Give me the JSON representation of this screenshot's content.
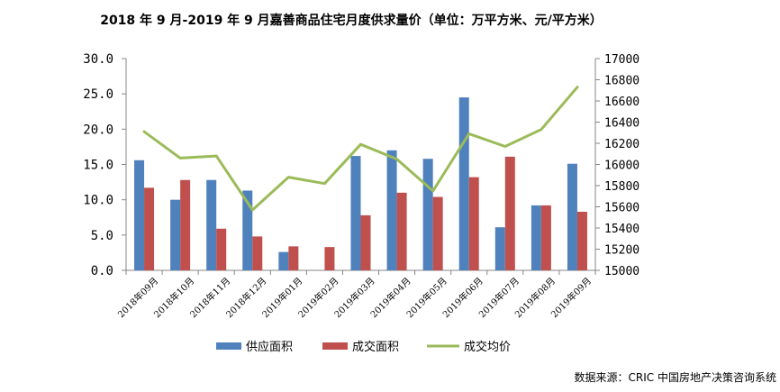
{
  "title": "2018 年 9 月-2019 年 9 月嘉善商品住宅月度供求量价（单位：万平方米、元/平方米）",
  "source": "数据来源：CRIC 中国房地产决策咨询系统",
  "colors": {
    "supply": "#4F81BD",
    "deal_area": "#C0504D",
    "deal_price": "#9BBB59",
    "axis": "#868686",
    "text": "#000000"
  },
  "chart_data": {
    "type": "bar",
    "categories": [
      "2018年09月",
      "2018年10月",
      "2018年11月",
      "2018年12月",
      "2019年01月",
      "2019年02月",
      "2019年03月",
      "2019年04月",
      "2019年05月",
      "2019年06月",
      "2019年07月",
      "2019年08月",
      "2019年09月"
    ],
    "series": [
      {
        "name": "供应面积",
        "type": "bar",
        "axis": "left",
        "values": [
          15.6,
          10.0,
          12.8,
          11.3,
          2.6,
          0,
          16.2,
          17.0,
          15.8,
          24.5,
          6.1,
          9.2,
          15.1
        ]
      },
      {
        "name": "成交面积",
        "type": "bar",
        "axis": "left",
        "values": [
          11.7,
          12.8,
          5.9,
          4.8,
          3.4,
          3.3,
          7.8,
          11.0,
          10.4,
          13.2,
          16.1,
          9.2,
          8.3
        ]
      },
      {
        "name": "成交均价",
        "type": "line",
        "axis": "right",
        "values": [
          16310,
          16060,
          16080,
          15570,
          15880,
          15820,
          16190,
          16050,
          15750,
          16290,
          16170,
          16330,
          16730
        ]
      }
    ],
    "y_left": {
      "min": 0,
      "max": 30,
      "ticks": [
        "0.0",
        "5.0",
        "10.0",
        "15.0",
        "20.0",
        "25.0",
        "30.0"
      ]
    },
    "y_right": {
      "min": 15000,
      "max": 17000,
      "ticks": [
        "15000",
        "15200",
        "15400",
        "15600",
        "15800",
        "16000",
        "16200",
        "16400",
        "16600",
        "16800",
        "17000"
      ]
    },
    "grid": false,
    "legend_position": "bottom"
  }
}
